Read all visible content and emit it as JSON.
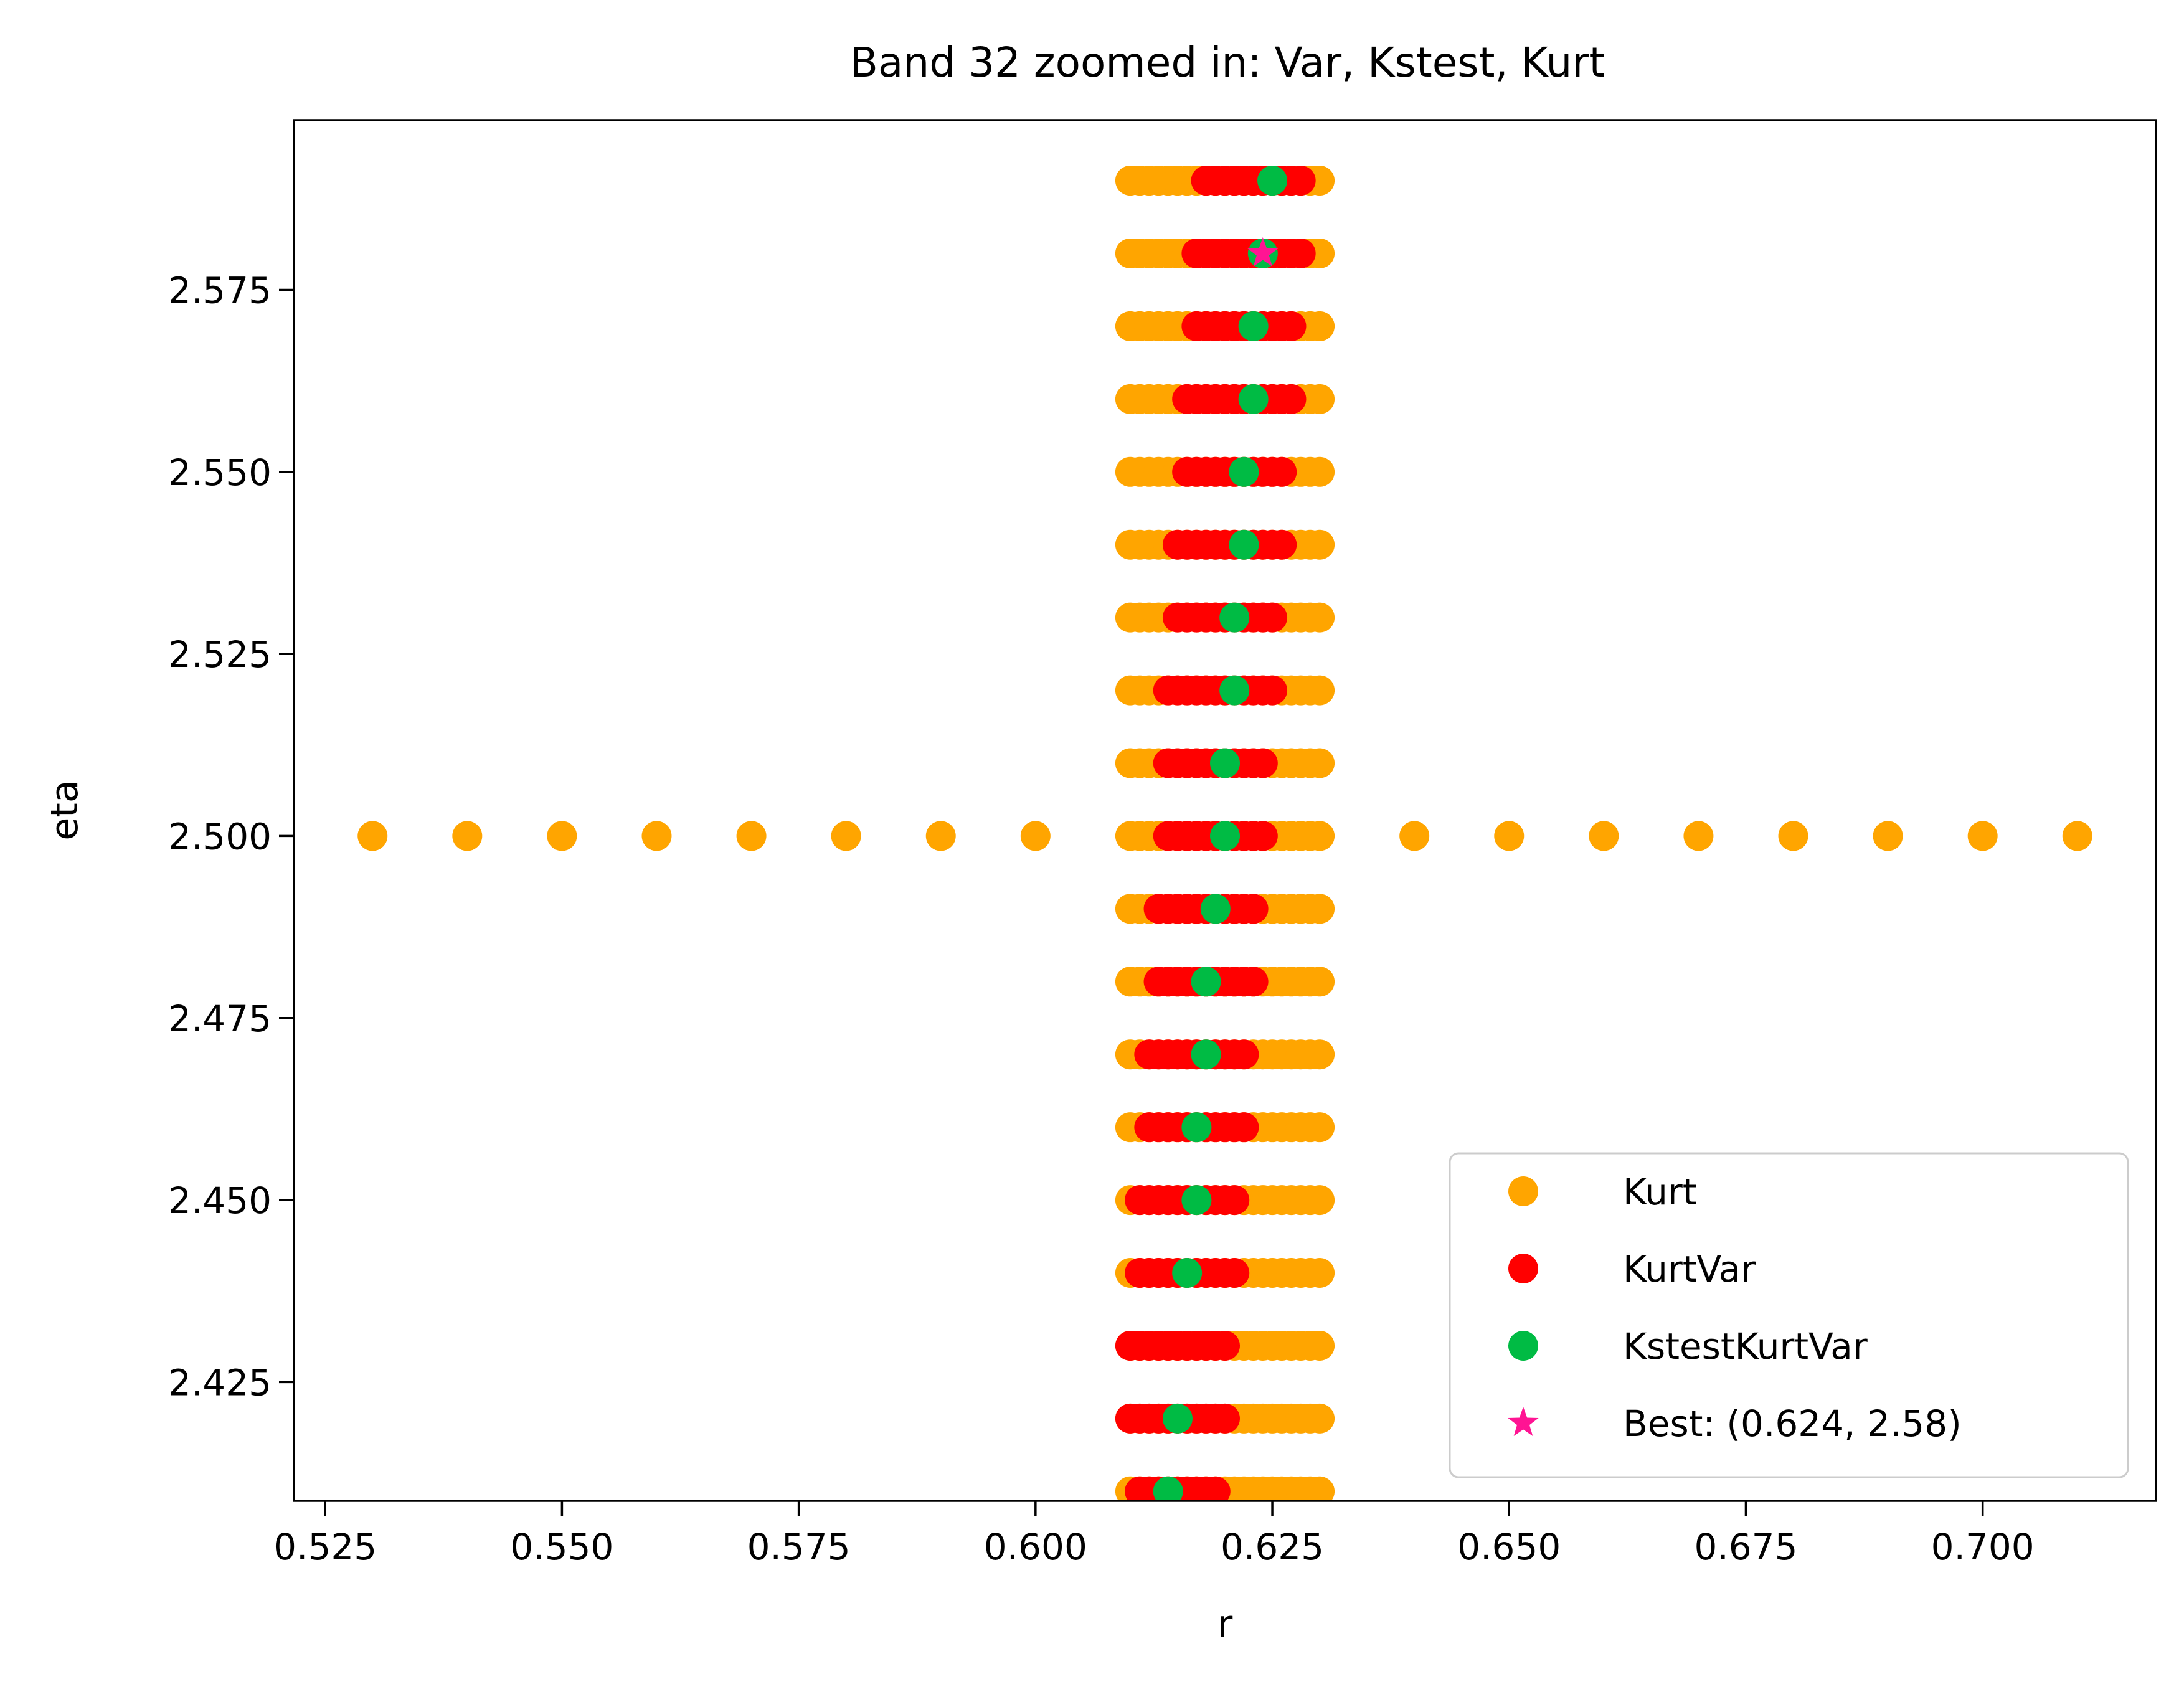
{
  "chart_data": {
    "type": "scatter",
    "title": "Band 32 zoomed in: Var, Kstest, Kurt",
    "xlabel": "r",
    "ylabel": "eta",
    "xlim": [
      0.5217,
      0.7183
    ],
    "ylim": [
      2.4087,
      2.5983
    ],
    "xticks": [
      "0.525",
      "0.550",
      "0.575",
      "0.600",
      "0.625",
      "0.650",
      "0.675",
      "0.700"
    ],
    "yticks": [
      "2.425",
      "2.450",
      "2.475",
      "2.500",
      "2.525",
      "2.550",
      "2.575"
    ],
    "legend_position": "lower right",
    "series": [
      {
        "name": "Kurt",
        "color": "#FFA500",
        "marker": "circle",
        "rows": [
          {
            "eta": 2.41,
            "r": [
              0.61,
              0.63
            ],
            "step": 0.001
          },
          {
            "eta": 2.42,
            "r": [
              0.61,
              0.63
            ],
            "step": 0.001
          },
          {
            "eta": 2.43,
            "r": [
              0.61,
              0.63
            ],
            "step": 0.001
          },
          {
            "eta": 2.44,
            "r": [
              0.61,
              0.63
            ],
            "step": 0.001
          },
          {
            "eta": 2.45,
            "r": [
              0.61,
              0.63
            ],
            "step": 0.001
          },
          {
            "eta": 2.46,
            "r": [
              0.61,
              0.63
            ],
            "step": 0.001
          },
          {
            "eta": 2.47,
            "r": [
              0.61,
              0.63
            ],
            "step": 0.001
          },
          {
            "eta": 2.48,
            "r": [
              0.61,
              0.63
            ],
            "step": 0.001
          },
          {
            "eta": 2.49,
            "r": [
              0.61,
              0.63
            ],
            "step": 0.001
          },
          {
            "eta": 2.5,
            "r": [
              0.61,
              0.63
            ],
            "step": 0.001
          },
          {
            "eta": 2.51,
            "r": [
              0.61,
              0.63
            ],
            "step": 0.001
          },
          {
            "eta": 2.52,
            "r": [
              0.61,
              0.63
            ],
            "step": 0.001
          },
          {
            "eta": 2.53,
            "r": [
              0.61,
              0.63
            ],
            "step": 0.001
          },
          {
            "eta": 2.54,
            "r": [
              0.61,
              0.63
            ],
            "step": 0.001
          },
          {
            "eta": 2.55,
            "r": [
              0.61,
              0.63
            ],
            "step": 0.001
          },
          {
            "eta": 2.56,
            "r": [
              0.61,
              0.63
            ],
            "step": 0.001
          },
          {
            "eta": 2.57,
            "r": [
              0.61,
              0.63
            ],
            "step": 0.001
          },
          {
            "eta": 2.58,
            "r": [
              0.61,
              0.63
            ],
            "step": 0.001
          },
          {
            "eta": 2.59,
            "r": [
              0.61,
              0.63
            ],
            "step": 0.001
          }
        ],
        "points": [
          [
            0.53,
            2.5
          ],
          [
            0.54,
            2.5
          ],
          [
            0.55,
            2.5
          ],
          [
            0.56,
            2.5
          ],
          [
            0.57,
            2.5
          ],
          [
            0.58,
            2.5
          ],
          [
            0.59,
            2.5
          ],
          [
            0.6,
            2.5
          ],
          [
            0.64,
            2.5
          ],
          [
            0.65,
            2.5
          ],
          [
            0.66,
            2.5
          ],
          [
            0.67,
            2.5
          ],
          [
            0.68,
            2.5
          ],
          [
            0.69,
            2.5
          ],
          [
            0.7,
            2.5
          ],
          [
            0.71,
            2.5
          ]
        ]
      },
      {
        "name": "KurtVar",
        "color": "#FF0000",
        "marker": "circle",
        "rows": [
          {
            "eta": 2.41,
            "r": [
              0.611,
              0.619
            ],
            "step": 0.001
          },
          {
            "eta": 2.42,
            "r": [
              0.61,
              0.62
            ],
            "step": 0.001
          },
          {
            "eta": 2.43,
            "r": [
              0.61,
              0.62
            ],
            "step": 0.001
          },
          {
            "eta": 2.44,
            "r": [
              0.611,
              0.621
            ],
            "step": 0.001
          },
          {
            "eta": 2.45,
            "r": [
              0.611,
              0.621
            ],
            "step": 0.001
          },
          {
            "eta": 2.46,
            "r": [
              0.612,
              0.622
            ],
            "step": 0.001
          },
          {
            "eta": 2.47,
            "r": [
              0.612,
              0.622
            ],
            "step": 0.001
          },
          {
            "eta": 2.48,
            "r": [
              0.613,
              0.623
            ],
            "step": 0.001
          },
          {
            "eta": 2.49,
            "r": [
              0.613,
              0.623
            ],
            "step": 0.001
          },
          {
            "eta": 2.5,
            "r": [
              0.614,
              0.624
            ],
            "step": 0.001
          },
          {
            "eta": 2.51,
            "r": [
              0.614,
              0.624
            ],
            "step": 0.001
          },
          {
            "eta": 2.52,
            "r": [
              0.614,
              0.625
            ],
            "step": 0.001
          },
          {
            "eta": 2.53,
            "r": [
              0.615,
              0.625
            ],
            "step": 0.001
          },
          {
            "eta": 2.54,
            "r": [
              0.615,
              0.626
            ],
            "step": 0.001
          },
          {
            "eta": 2.55,
            "r": [
              0.616,
              0.626
            ],
            "step": 0.001
          },
          {
            "eta": 2.56,
            "r": [
              0.616,
              0.627
            ],
            "step": 0.001
          },
          {
            "eta": 2.57,
            "r": [
              0.617,
              0.627
            ],
            "step": 0.001
          },
          {
            "eta": 2.58,
            "r": [
              0.617,
              0.628
            ],
            "step": 0.001
          },
          {
            "eta": 2.59,
            "r": [
              0.618,
              0.628
            ],
            "step": 0.001
          }
        ]
      },
      {
        "name": "KstestKurtVar",
        "color": "#00BB44",
        "marker": "circle",
        "points": [
          [
            0.614,
            2.41
          ],
          [
            0.615,
            2.42
          ],
          [
            0.616,
            2.44
          ],
          [
            0.617,
            2.45
          ],
          [
            0.617,
            2.46
          ],
          [
            0.618,
            2.47
          ],
          [
            0.618,
            2.48
          ],
          [
            0.619,
            2.49
          ],
          [
            0.62,
            2.5
          ],
          [
            0.62,
            2.51
          ],
          [
            0.621,
            2.52
          ],
          [
            0.621,
            2.53
          ],
          [
            0.622,
            2.54
          ],
          [
            0.622,
            2.55
          ],
          [
            0.623,
            2.56
          ],
          [
            0.623,
            2.57
          ],
          [
            0.624,
            2.58
          ],
          [
            0.625,
            2.59
          ]
        ]
      },
      {
        "name": "Best: (0.624, 2.58)",
        "color": "#FF1493",
        "marker": "star",
        "points": [
          [
            0.624,
            2.58
          ]
        ]
      }
    ]
  }
}
